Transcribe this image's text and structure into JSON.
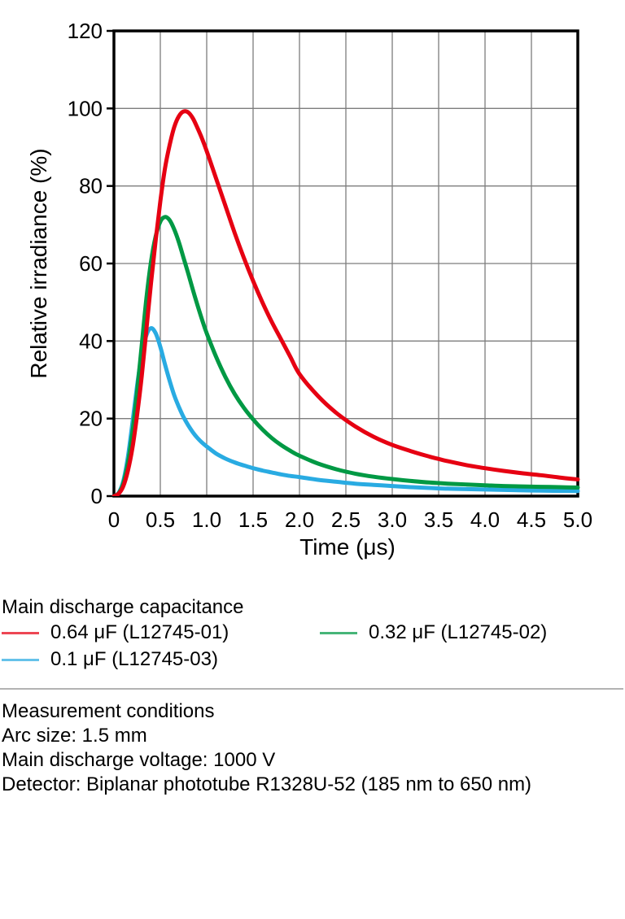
{
  "chart_data": {
    "type": "line",
    "title": "",
    "xlabel": "Time (μs)",
    "ylabel": "Relative irradiance (%)",
    "xlim": [
      0,
      5
    ],
    "ylim": [
      0,
      120
    ],
    "grid": true,
    "legend_position": "below",
    "x_ticks": [
      0,
      0.5,
      1.0,
      1.5,
      2.0,
      2.5,
      3.0,
      3.5,
      4.0,
      4.5,
      5.0
    ],
    "x_tick_labels": [
      "0",
      "0.5",
      "1.0",
      "1.5",
      "2.0",
      "2.5",
      "3.0",
      "3.5",
      "4.0",
      "4.5",
      "5.0"
    ],
    "y_ticks": [
      0,
      20,
      40,
      60,
      80,
      100,
      120
    ],
    "y_tick_labels": [
      "0",
      "20",
      "40",
      "60",
      "80",
      "100",
      "120"
    ],
    "series": [
      {
        "name": "0.64 μF (L12745-01)",
        "color": "#e60012",
        "points": [
          [
            0,
            0
          ],
          [
            0.05,
            0.6
          ],
          [
            0.1,
            2.5
          ],
          [
            0.15,
            6.5
          ],
          [
            0.2,
            12.5
          ],
          [
            0.25,
            21
          ],
          [
            0.3,
            31
          ],
          [
            0.35,
            43
          ],
          [
            0.4,
            55
          ],
          [
            0.45,
            66
          ],
          [
            0.5,
            76
          ],
          [
            0.55,
            84.5
          ],
          [
            0.6,
            90.5
          ],
          [
            0.65,
            95.2
          ],
          [
            0.7,
            98
          ],
          [
            0.75,
            99.2
          ],
          [
            0.8,
            99
          ],
          [
            0.85,
            97.5
          ],
          [
            0.9,
            95
          ],
          [
            0.95,
            92.2
          ],
          [
            1.0,
            89
          ],
          [
            1.1,
            82
          ],
          [
            1.2,
            75
          ],
          [
            1.3,
            68
          ],
          [
            1.4,
            61.5
          ],
          [
            1.5,
            55.5
          ],
          [
            1.6,
            50
          ],
          [
            1.7,
            45
          ],
          [
            1.8,
            40.5
          ],
          [
            1.9,
            36
          ],
          [
            2.0,
            31.5
          ],
          [
            2.2,
            25.8
          ],
          [
            2.4,
            21.4
          ],
          [
            2.6,
            18
          ],
          [
            2.8,
            15.3
          ],
          [
            3.0,
            13.2
          ],
          [
            3.2,
            11.6
          ],
          [
            3.4,
            10.2
          ],
          [
            3.6,
            9.0
          ],
          [
            3.8,
            8.0
          ],
          [
            4.0,
            7.2
          ],
          [
            4.2,
            6.5
          ],
          [
            4.4,
            5.9
          ],
          [
            4.6,
            5.4
          ],
          [
            4.8,
            4.8
          ],
          [
            5.0,
            4.3
          ]
        ]
      },
      {
        "name": "0.32 μF (L12745-02)",
        "color": "#009944",
        "points": [
          [
            0,
            0
          ],
          [
            0.05,
            0.7
          ],
          [
            0.1,
            3.2
          ],
          [
            0.15,
            8.5
          ],
          [
            0.2,
            16.5
          ],
          [
            0.25,
            27
          ],
          [
            0.3,
            39
          ],
          [
            0.35,
            51
          ],
          [
            0.4,
            60.5
          ],
          [
            0.45,
            67
          ],
          [
            0.5,
            70.8
          ],
          [
            0.55,
            72
          ],
          [
            0.6,
            71.2
          ],
          [
            0.65,
            68.8
          ],
          [
            0.7,
            65.5
          ],
          [
            0.75,
            61.5
          ],
          [
            0.8,
            57.5
          ],
          [
            0.85,
            53.3
          ],
          [
            0.9,
            49.3
          ],
          [
            0.95,
            45.5
          ],
          [
            1.0,
            42
          ],
          [
            1.1,
            36
          ],
          [
            1.2,
            30.8
          ],
          [
            1.3,
            26.4
          ],
          [
            1.4,
            22.8
          ],
          [
            1.5,
            19.8
          ],
          [
            1.6,
            17.2
          ],
          [
            1.7,
            15
          ],
          [
            1.8,
            13.2
          ],
          [
            1.9,
            11.7
          ],
          [
            2.0,
            10.4
          ],
          [
            2.2,
            8.4
          ],
          [
            2.4,
            6.9
          ],
          [
            2.6,
            5.8
          ],
          [
            2.8,
            5.0
          ],
          [
            3.0,
            4.4
          ],
          [
            3.2,
            3.9
          ],
          [
            3.4,
            3.5
          ],
          [
            3.6,
            3.2
          ],
          [
            3.8,
            3.0
          ],
          [
            4.0,
            2.8
          ],
          [
            4.2,
            2.6
          ],
          [
            4.4,
            2.5
          ],
          [
            4.6,
            2.4
          ],
          [
            4.8,
            2.3
          ],
          [
            5.0,
            2.2
          ]
        ]
      },
      {
        "name": "0.1 μF (L12745-03)",
        "color": "#29abe2",
        "points": [
          [
            0,
            0
          ],
          [
            0.05,
            0.8
          ],
          [
            0.1,
            3.8
          ],
          [
            0.15,
            10
          ],
          [
            0.2,
            19
          ],
          [
            0.25,
            28.5
          ],
          [
            0.3,
            36.5
          ],
          [
            0.35,
            41.5
          ],
          [
            0.4,
            43.3
          ],
          [
            0.45,
            42
          ],
          [
            0.5,
            38.5
          ],
          [
            0.55,
            34
          ],
          [
            0.6,
            29.8
          ],
          [
            0.65,
            26
          ],
          [
            0.7,
            23
          ],
          [
            0.75,
            20.4
          ],
          [
            0.8,
            18.3
          ],
          [
            0.85,
            16.5
          ],
          [
            0.9,
            15
          ],
          [
            0.95,
            13.8
          ],
          [
            1.0,
            12.8
          ],
          [
            1.1,
            11
          ],
          [
            1.2,
            9.7
          ],
          [
            1.3,
            8.7
          ],
          [
            1.4,
            7.9
          ],
          [
            1.5,
            7.2
          ],
          [
            1.6,
            6.6
          ],
          [
            1.7,
            6.1
          ],
          [
            1.8,
            5.6
          ],
          [
            1.9,
            5.2
          ],
          [
            2.0,
            4.9
          ],
          [
            2.2,
            4.2
          ],
          [
            2.4,
            3.7
          ],
          [
            2.6,
            3.2
          ],
          [
            2.8,
            2.9
          ],
          [
            3.0,
            2.6
          ],
          [
            3.2,
            2.3
          ],
          [
            3.4,
            2.1
          ],
          [
            3.6,
            1.9
          ],
          [
            3.8,
            1.8
          ],
          [
            4.0,
            1.7
          ],
          [
            4.2,
            1.6
          ],
          [
            4.4,
            1.5
          ],
          [
            4.6,
            1.4
          ],
          [
            4.8,
            1.35
          ],
          [
            5.0,
            1.3
          ]
        ]
      }
    ]
  },
  "legend": {
    "title": "Main discharge capacitance",
    "items": [
      {
        "label": "0.64 μF (L12745-01)",
        "color": "#e60012"
      },
      {
        "label": "0.32 μF (L12745-02)",
        "color": "#009944"
      },
      {
        "label": "0.1 μF (L12745-03)",
        "color": "#29abe2"
      }
    ]
  },
  "conditions": {
    "title": "Measurement conditions",
    "lines": [
      "Arc size: 1.5 mm",
      "Main discharge voltage: 1000 V",
      "Detector: Biplanar phototube R1328U-52 (185 nm to 650 nm)"
    ]
  },
  "style_colors": {
    "grid": "#7d7d7d",
    "axis": "#000000",
    "divider": "#b3b3b3"
  }
}
